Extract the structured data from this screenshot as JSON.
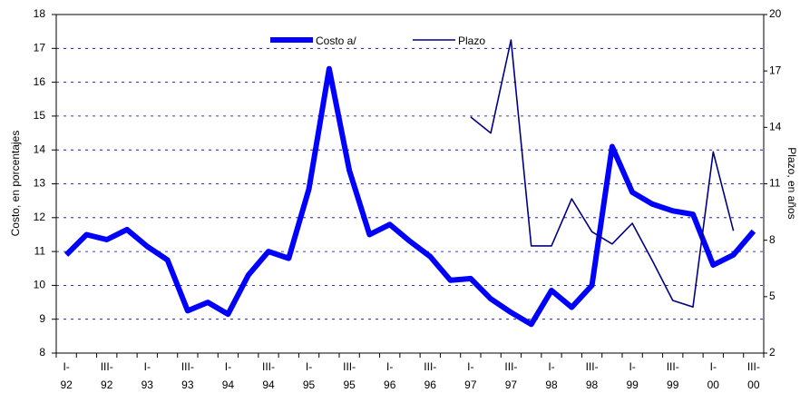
{
  "chart_data": {
    "type": "line",
    "y_label": "Costo, en porcentajes",
    "y2_label": "Plazo, en años",
    "categories": [
      "I-\n92",
      null,
      "III-\n92",
      null,
      "I-\n93",
      null,
      "III-\n93",
      null,
      "I-\n94",
      null,
      "III-\n94",
      null,
      "I-\n95",
      null,
      "III-\n95",
      null,
      "I-\n96",
      null,
      "III-\n96",
      null,
      "I-\n97",
      null,
      "III-\n97",
      null,
      "I-\n98",
      null,
      "III-\n98",
      null,
      "I-\n99",
      null,
      "III-\n99",
      null,
      "I-\n00",
      null,
      "III-\n00"
    ],
    "series": [
      {
        "name": "Costo a/",
        "color": "#0000ff",
        "values": [
          10.9,
          11.5,
          11.35,
          11.65,
          11.15,
          10.75,
          9.25,
          9.5,
          9.15,
          10.3,
          11.0,
          10.8,
          12.85,
          16.4,
          13.4,
          11.5,
          11.8,
          11.3,
          10.85,
          10.15,
          10.2,
          9.6,
          9.2,
          8.85,
          9.85,
          9.35,
          10.0,
          14.1,
          12.75,
          12.4,
          12.2,
          12.1,
          10.6,
          10.9,
          11.6
        ]
      },
      {
        "name": "Plazo",
        "color": "#000080",
        "axis": "y2",
        "values": [
          null,
          null,
          null,
          null,
          null,
          null,
          null,
          null,
          null,
          null,
          null,
          null,
          null,
          null,
          null,
          null,
          null,
          null,
          null,
          null,
          14.55,
          13.7,
          18.65,
          7.7,
          7.7,
          10.2,
          8.45,
          7.8,
          8.9,
          6.9,
          4.8,
          4.45,
          12.7,
          8.5,
          null
        ]
      }
    ],
    "ylim": [
      8,
      18
    ],
    "yticks": [
      8,
      9,
      10,
      11,
      12,
      13,
      14,
      15,
      16,
      17,
      18
    ],
    "y2lim": [
      2,
      20
    ],
    "y2ticks": [
      2,
      5,
      8,
      11,
      14,
      17,
      20
    ],
    "grid": true,
    "legend": "top"
  }
}
